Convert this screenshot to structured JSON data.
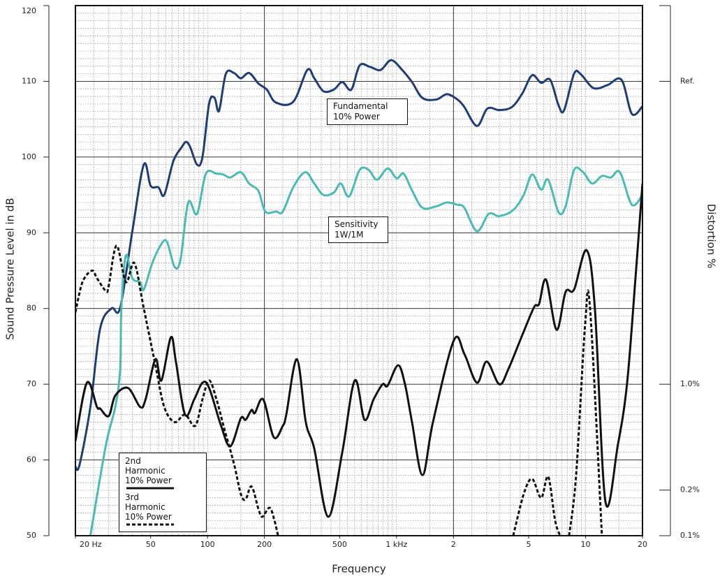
{
  "chart_data": {
    "type": "line",
    "xlabel": "Frequency",
    "ylabel": "Sound Pressure Level in dB",
    "y2label": "Distortion %",
    "xscale": "log",
    "y2scale": "log",
    "xlim": [
      20,
      20000
    ],
    "ylim": [
      50,
      120
    ],
    "y2lim": [
      0.1,
      316.2
    ],
    "xticks": [
      {
        "value": 20,
        "label": "20 Hz"
      },
      50,
      100,
      200,
      500,
      {
        "value": 1000,
        "label": "1 kHz"
      },
      {
        "value": 2000,
        "label": "2"
      },
      {
        "value": 5000,
        "label": "5"
      },
      {
        "value": 10000,
        "label": "10"
      },
      {
        "value": 20000,
        "label": "20"
      }
    ],
    "yticks": [
      50,
      60,
      70,
      80,
      90,
      100,
      110,
      120
    ],
    "y2ticks": [
      {
        "value": 100,
        "label": "Ref."
      },
      {
        "value": 1,
        "label": "1.0%"
      },
      {
        "value": 0.2,
        "label": "0.2%"
      },
      {
        "value": 0.1,
        "label": "0.1%"
      }
    ],
    "xgrid": [
      200,
      2000
    ],
    "grid": true,
    "minor_grid": true,
    "legend": "lower left",
    "annotations": [
      {
        "lines": [
          "Fundamental",
          "10% Power"
        ]
      },
      {
        "lines": [
          "Sensitivity",
          "1W/1M"
        ]
      }
    ],
    "series": [
      {
        "name": "Fundamental 10% Power",
        "color": "#1f3c74",
        "line_style": "solid",
        "in_legend": false,
        "x": [
          20,
          21,
          24,
          27,
          31,
          34.5,
          40,
          46,
          50,
          55,
          59,
          66,
          73,
          77,
          81,
          88,
          94,
          102,
          109,
          115,
          125,
          138,
          150,
          166,
          186,
          206,
          230,
          284,
          337,
          367,
          410,
          465,
          516,
          576,
          638,
          725,
          823,
          935,
          1062,
          1207,
          1371,
          1625,
          1847,
          2098,
          2284,
          2662,
          3024,
          3494,
          4073,
          4626,
          5212,
          5822,
          6500,
          7200,
          7700,
          8690,
          9460,
          11020,
          13060,
          15480,
          17580,
          20000
        ],
        "values": [
          59.1,
          59.3,
          67,
          77.3,
          80,
          80.1,
          90.2,
          99,
          96.2,
          96,
          95,
          99.5,
          101.3,
          102,
          101.3,
          99,
          100,
          107.1,
          107.8,
          106.1,
          111,
          111.1,
          110.4,
          111.1,
          109.7,
          108.9,
          107.2,
          107.3,
          111.5,
          110.4,
          108.7,
          108.9,
          109.9,
          108.9,
          112.1,
          111.9,
          111.5,
          112.8,
          111.6,
          109.9,
          107.8,
          107.6,
          108.3,
          107.6,
          106.6,
          104.1,
          106.4,
          106.2,
          106.6,
          108.4,
          110.8,
          109.8,
          110.2,
          106.8,
          106.2,
          111,
          110.9,
          109.1,
          109.5,
          110.2,
          105.7,
          106.7
        ]
      },
      {
        "name": "Sensitivity 1W/1M",
        "color": "#4bbab2",
        "line_style": "solid",
        "in_legend": false,
        "x": [
          24,
          29,
          32.5,
          34.5,
          35,
          37,
          40,
          44,
          46,
          51,
          57,
          61,
          67,
          72,
          79,
          88,
          98,
          111.5,
          121,
          132,
          150,
          166,
          186,
          202,
          230,
          250,
          284,
          328,
          367,
          410,
          465,
          507,
          561,
          638,
          712,
          789,
          896,
          1001,
          1090,
          1207,
          1371,
          1625,
          1847,
          2098,
          2284,
          2662,
          3076,
          3494,
          4142,
          4706,
          5212,
          5822,
          6340,
          7200,
          7840,
          8690,
          9700,
          10840,
          12200,
          13620,
          15200,
          17580,
          20000
        ],
        "values": [
          50,
          62,
          67,
          72,
          80,
          87,
          84,
          83.5,
          82.5,
          86,
          88.5,
          88.8,
          85.5,
          86.5,
          94,
          92.5,
          97.8,
          97.8,
          97.7,
          97.3,
          98,
          96.5,
          95.5,
          92.8,
          92.8,
          92.8,
          96,
          98,
          96.5,
          95,
          95.3,
          96.5,
          94.8,
          98.3,
          98.3,
          97,
          98.5,
          97.2,
          97.8,
          95.6,
          93.3,
          93.5,
          94,
          93.7,
          93.3,
          90.2,
          92.5,
          92.2,
          93,
          95,
          97.7,
          95.7,
          97,
          92.7,
          93.5,
          98.3,
          98,
          96.5,
          97.5,
          97.3,
          98,
          93.7,
          95
        ]
      },
      {
        "name": "2nd Harmonic 10% Power",
        "color": "#111111",
        "line_style": "solid",
        "in_legend": true,
        "x": [
          20,
          23,
          26,
          27,
          30,
          32.5,
          38,
          44,
          47,
          53,
          57,
          64,
          68,
          76,
          85,
          94,
          102,
          118,
          132,
          150,
          159,
          171,
          178,
          197,
          224,
          250,
          261,
          297,
          331,
          367,
          435,
          516,
          601,
          677,
          756,
          844,
          896,
          1018,
          1108,
          1207,
          1371,
          1558,
          2010,
          2284,
          2662,
          2998,
          3494,
          3904,
          4626,
          5346,
          5676,
          6180,
          7020,
          7840,
          8690,
          10116,
          11200,
          12736,
          14820,
          16560,
          18360,
          20000
        ],
        "values": [
          62.5,
          70.2,
          67,
          66.8,
          65.8,
          68.5,
          69.5,
          67,
          68,
          73.3,
          70.5,
          76.2,
          73,
          66,
          68,
          70.2,
          69.5,
          64.5,
          61.8,
          65.5,
          65.3,
          66.6,
          66.2,
          68,
          63,
          64.5,
          66,
          73.3,
          65,
          61.5,
          52.5,
          61,
          70.5,
          65.3,
          68,
          70,
          69.8,
          72.5,
          70,
          65,
          58,
          65,
          75.8,
          74,
          70.2,
          73,
          70,
          72,
          76.5,
          80.2,
          80.6,
          83.8,
          77.2,
          82.2,
          82.5,
          87.7,
          80,
          54.5,
          62,
          70,
          84,
          96.5
        ]
      },
      {
        "name": "3rd Harmonic 10% Power",
        "color": "#111111",
        "line_style": "dashed",
        "in_legend": true,
        "x": [
          20,
          21.8,
          24.5,
          26,
          29,
          30,
          33,
          37,
          41,
          46,
          53,
          59,
          67,
          76,
          86,
          94,
          102,
          111.5,
          123,
          138,
          150,
          159,
          171,
          186,
          195,
          213,
          226,
          236,
          1000,
          4142,
          4706,
          5212,
          5822,
          6340,
          6900,
          7330,
          7700,
          8180,
          8910,
          9950,
          10560,
          12200
        ],
        "values": [
          79.5,
          83.5,
          85,
          84,
          82.3,
          83,
          88.3,
          83.5,
          86,
          80,
          72.5,
          67,
          65,
          66,
          64.5,
          68,
          70.5,
          68,
          64,
          59.5,
          55.5,
          54.8,
          56.5,
          53.5,
          52.5,
          53.7,
          52,
          50,
          null,
          50,
          55.5,
          57.5,
          55,
          57.8,
          52,
          50,
          null,
          50,
          58,
          78,
          80,
          50
        ]
      }
    ]
  }
}
